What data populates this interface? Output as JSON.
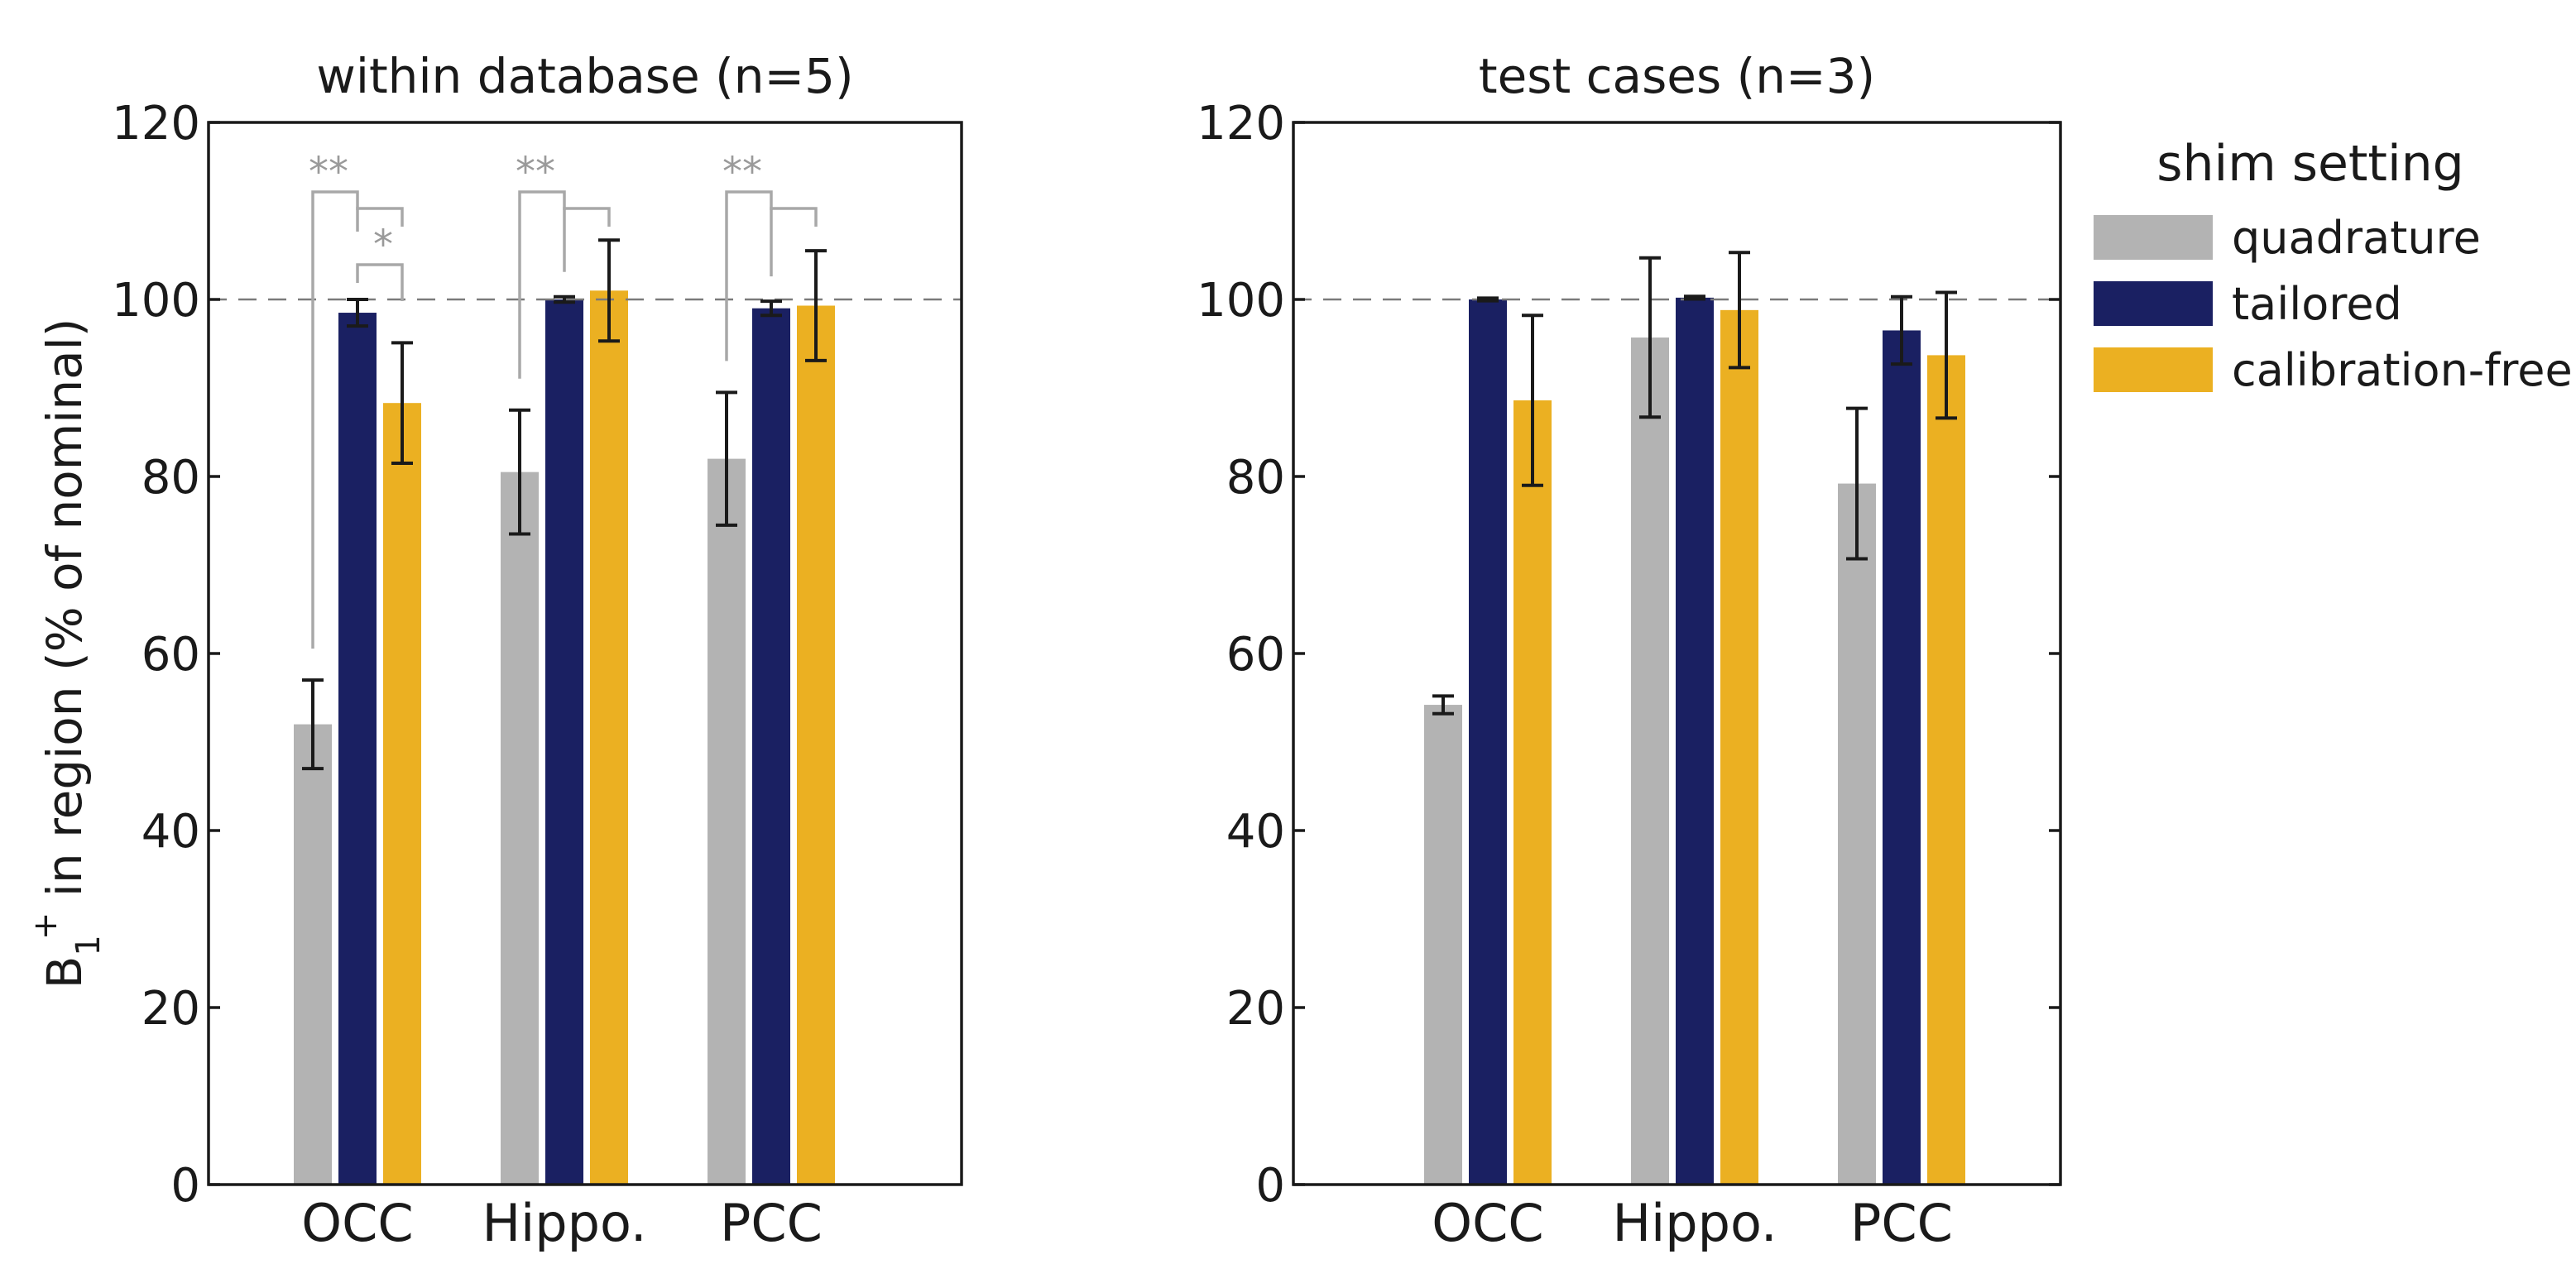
{
  "chart_data": {
    "type": "bar",
    "ylabel": {
      "main": "B",
      "sub": "1",
      "sup": "+",
      "rest": " in region (% of nominal)"
    },
    "ylim": [
      0,
      120
    ],
    "yticks": [
      0,
      20,
      40,
      60,
      80,
      100,
      120
    ],
    "reference_line": 100,
    "categories": [
      "OCC",
      "Hippo.",
      "PCC"
    ],
    "legend": {
      "title": "shim setting",
      "entries": [
        {
          "name": "quadrature",
          "color": "#b3b3b3"
        },
        {
          "name": "tailored",
          "color": "#1a2062"
        },
        {
          "name": "calibration-free",
          "color": "#ebb022"
        }
      ]
    },
    "panels": [
      {
        "title": "within database (n=5)",
        "series": [
          {
            "name": "quadrature",
            "values": [
              52,
              80.5,
              82
            ],
            "errors": [
              5,
              7,
              7.5
            ]
          },
          {
            "name": "tailored",
            "values": [
              98.5,
              100,
              99
            ],
            "errors": [
              1.5,
              0.3,
              0.8
            ]
          },
          {
            "name": "calibration-free",
            "values": [
              88.3,
              101,
              99.3
            ],
            "errors": [
              6.8,
              5.7,
              6.2
            ]
          }
        ],
        "significance": [
          {
            "category": 0,
            "from": "quadrature",
            "to": "tailored",
            "label": "**"
          },
          {
            "category": 0,
            "from": "tailored",
            "to": "calibration-free",
            "label": "*"
          },
          {
            "category": 1,
            "from": "quadrature",
            "to": "tailored",
            "label": "**"
          },
          {
            "category": 2,
            "from": "quadrature",
            "to": "tailored",
            "label": "**"
          }
        ]
      },
      {
        "title": "test cases (n=3)",
        "series": [
          {
            "name": "quadrature",
            "values": [
              54.2,
              95.7,
              79.2
            ],
            "errors": [
              1,
              9,
              8.5
            ]
          },
          {
            "name": "tailored",
            "values": [
              100,
              100.2,
              96.5
            ],
            "errors": [
              0.15,
              0.15,
              3.8
            ]
          },
          {
            "name": "calibration-free",
            "values": [
              88.6,
              98.8,
              93.7
            ],
            "errors": [
              9.6,
              6.5,
              7.1
            ]
          }
        ],
        "significance": []
      }
    ]
  }
}
